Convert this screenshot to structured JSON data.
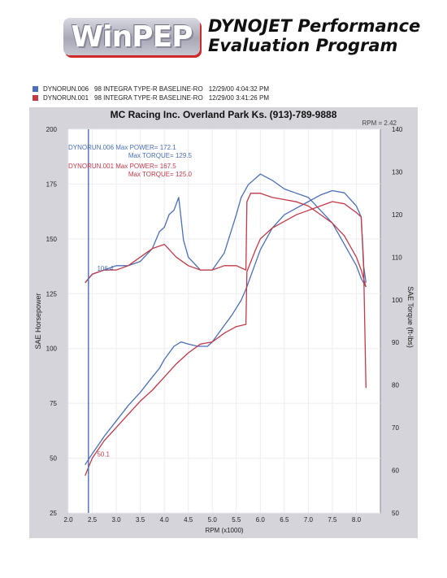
{
  "header": {
    "logo_text": "WinPEP",
    "title_line1": "DYNOJET Performance",
    "title_line2": "Evaluation Program"
  },
  "legend": [
    {
      "run": "DYNORUN.006",
      "desc": "98 INTEGRA TYPE-R BASELINE-RO",
      "date": "12/29/00",
      "time": "4:04:32 PM",
      "color": "#4a6fb8"
    },
    {
      "run": "DYNORUN.001",
      "desc": "98 INTEGRA TYPE-R BASELINE-RO",
      "date": "12/29/00",
      "time": "3:41:26 PM",
      "color": "#c23a48"
    }
  ],
  "chart_data": {
    "type": "line",
    "title": "MC Racing Inc.  Overland Park Ks.  (913)-789-9888",
    "corner_label": "RPM = 2.42",
    "xlabel": "RPM (x1000)",
    "ylabel": "SAE Horsepower",
    "y2label": "SAE Torque (ft-lbs)",
    "xlim": [
      2.0,
      8.5
    ],
    "ylim": [
      25,
      200
    ],
    "y2lim": [
      50,
      140
    ],
    "xticks": [
      "2.0",
      "2.5",
      "3.0",
      "3.5",
      "4.0",
      "4.5",
      "5.0",
      "5.5",
      "6.0",
      "6.5",
      "7.0",
      "7.5",
      "8.0"
    ],
    "yticks": [
      "25",
      "50",
      "75",
      "100",
      "125",
      "150",
      "175",
      "200"
    ],
    "y2ticks": [
      "50",
      "60",
      "70",
      "80",
      "90",
      "100",
      "110",
      "120",
      "130",
      "140"
    ],
    "grid": true,
    "cursor_x": 2.42,
    "info_box": [
      {
        "lines": [
          "DYNORUN.006  Max POWER= 172.1",
          "Max TORQUE= 129.5"
        ],
        "color": "#4a6fb8"
      },
      {
        "lines": [
          "DYNORUN.001  Max POWER= 167.5",
          "Max TORQUE= 125.0"
        ],
        "color": "#c23a48"
      }
    ],
    "annotations": [
      {
        "text": "106.4",
        "x": 2.6,
        "y2": 106.4,
        "color": "#4a6fb8"
      },
      {
        "text": "50.1",
        "x": 2.6,
        "y": 50.1,
        "color": "#c23a48"
      }
    ],
    "series": [
      {
        "name": "DYNORUN.006",
        "quantity": "power",
        "axis": "left",
        "color": "#4a6fb8",
        "x": [
          2.35,
          2.5,
          2.75,
          3.0,
          3.25,
          3.5,
          3.75,
          3.9,
          4.0,
          4.2,
          4.35,
          4.5,
          4.7,
          4.9,
          5.0,
          5.2,
          5.4,
          5.6,
          5.7,
          5.8,
          6.0,
          6.25,
          6.5,
          6.75,
          7.0,
          7.25,
          7.5,
          7.75,
          8.0,
          8.1,
          8.15,
          8.2
        ],
        "y": [
          47,
          52,
          60,
          67,
          74,
          80,
          87,
          91,
          95,
          101,
          103,
          102,
          101,
          101,
          103,
          109,
          115,
          122,
          127,
          133,
          145,
          155,
          161,
          164,
          167,
          170,
          172,
          171,
          165,
          160,
          138,
          130
        ]
      },
      {
        "name": "DYNORUN.006",
        "quantity": "torque",
        "axis": "right",
        "color": "#4a6fb8",
        "x": [
          2.35,
          2.5,
          2.75,
          3.0,
          3.25,
          3.5,
          3.75,
          3.9,
          4.0,
          4.1,
          4.2,
          4.3,
          4.4,
          4.5,
          4.75,
          5.0,
          5.25,
          5.5,
          5.6,
          5.75,
          6.0,
          6.25,
          6.5,
          6.75,
          7.0,
          7.25,
          7.5,
          7.75,
          8.0,
          8.1,
          8.2
        ],
        "y": [
          104,
          106,
          107,
          108,
          108,
          109,
          112,
          116,
          117,
          120,
          121,
          124,
          114,
          110,
          107,
          107,
          111,
          120,
          124,
          127,
          129.5,
          128,
          126,
          125,
          124,
          121,
          118,
          113,
          108,
          105,
          103
        ]
      },
      {
        "name": "DYNORUN.001",
        "quantity": "power",
        "axis": "left",
        "color": "#c23a48",
        "x": [
          2.35,
          2.5,
          2.75,
          3.0,
          3.25,
          3.5,
          3.75,
          4.0,
          4.25,
          4.5,
          4.75,
          5.0,
          5.25,
          5.5,
          5.7,
          5.72,
          5.9,
          6.0,
          6.25,
          6.5,
          6.75,
          7.0,
          7.25,
          7.5,
          7.75,
          8.0,
          8.1,
          8.15,
          8.2
        ],
        "y": [
          42,
          50,
          58,
          64,
          70,
          76,
          81,
          87,
          93,
          98,
          102,
          103,
          107,
          110,
          111,
          135,
          145,
          150,
          155,
          158,
          161,
          163,
          165,
          167,
          166,
          162,
          160,
          140,
          82
        ]
      },
      {
        "name": "DYNORUN.001",
        "quantity": "torque",
        "axis": "right",
        "color": "#c23a48",
        "x": [
          2.35,
          2.5,
          2.75,
          3.0,
          3.25,
          3.5,
          3.75,
          4.0,
          4.25,
          4.5,
          4.75,
          5.0,
          5.25,
          5.5,
          5.7,
          5.72,
          5.8,
          6.0,
          6.25,
          6.5,
          6.75,
          7.0,
          7.25,
          7.5,
          7.75,
          8.0,
          8.1,
          8.2
        ],
        "y": [
          104,
          106,
          107,
          107,
          108,
          110,
          112,
          113,
          110,
          108,
          107,
          107,
          108,
          108,
          107,
          123,
          125,
          125,
          124,
          123.5,
          123,
          122,
          120,
          118,
          115,
          110,
          107,
          103
        ]
      }
    ]
  }
}
